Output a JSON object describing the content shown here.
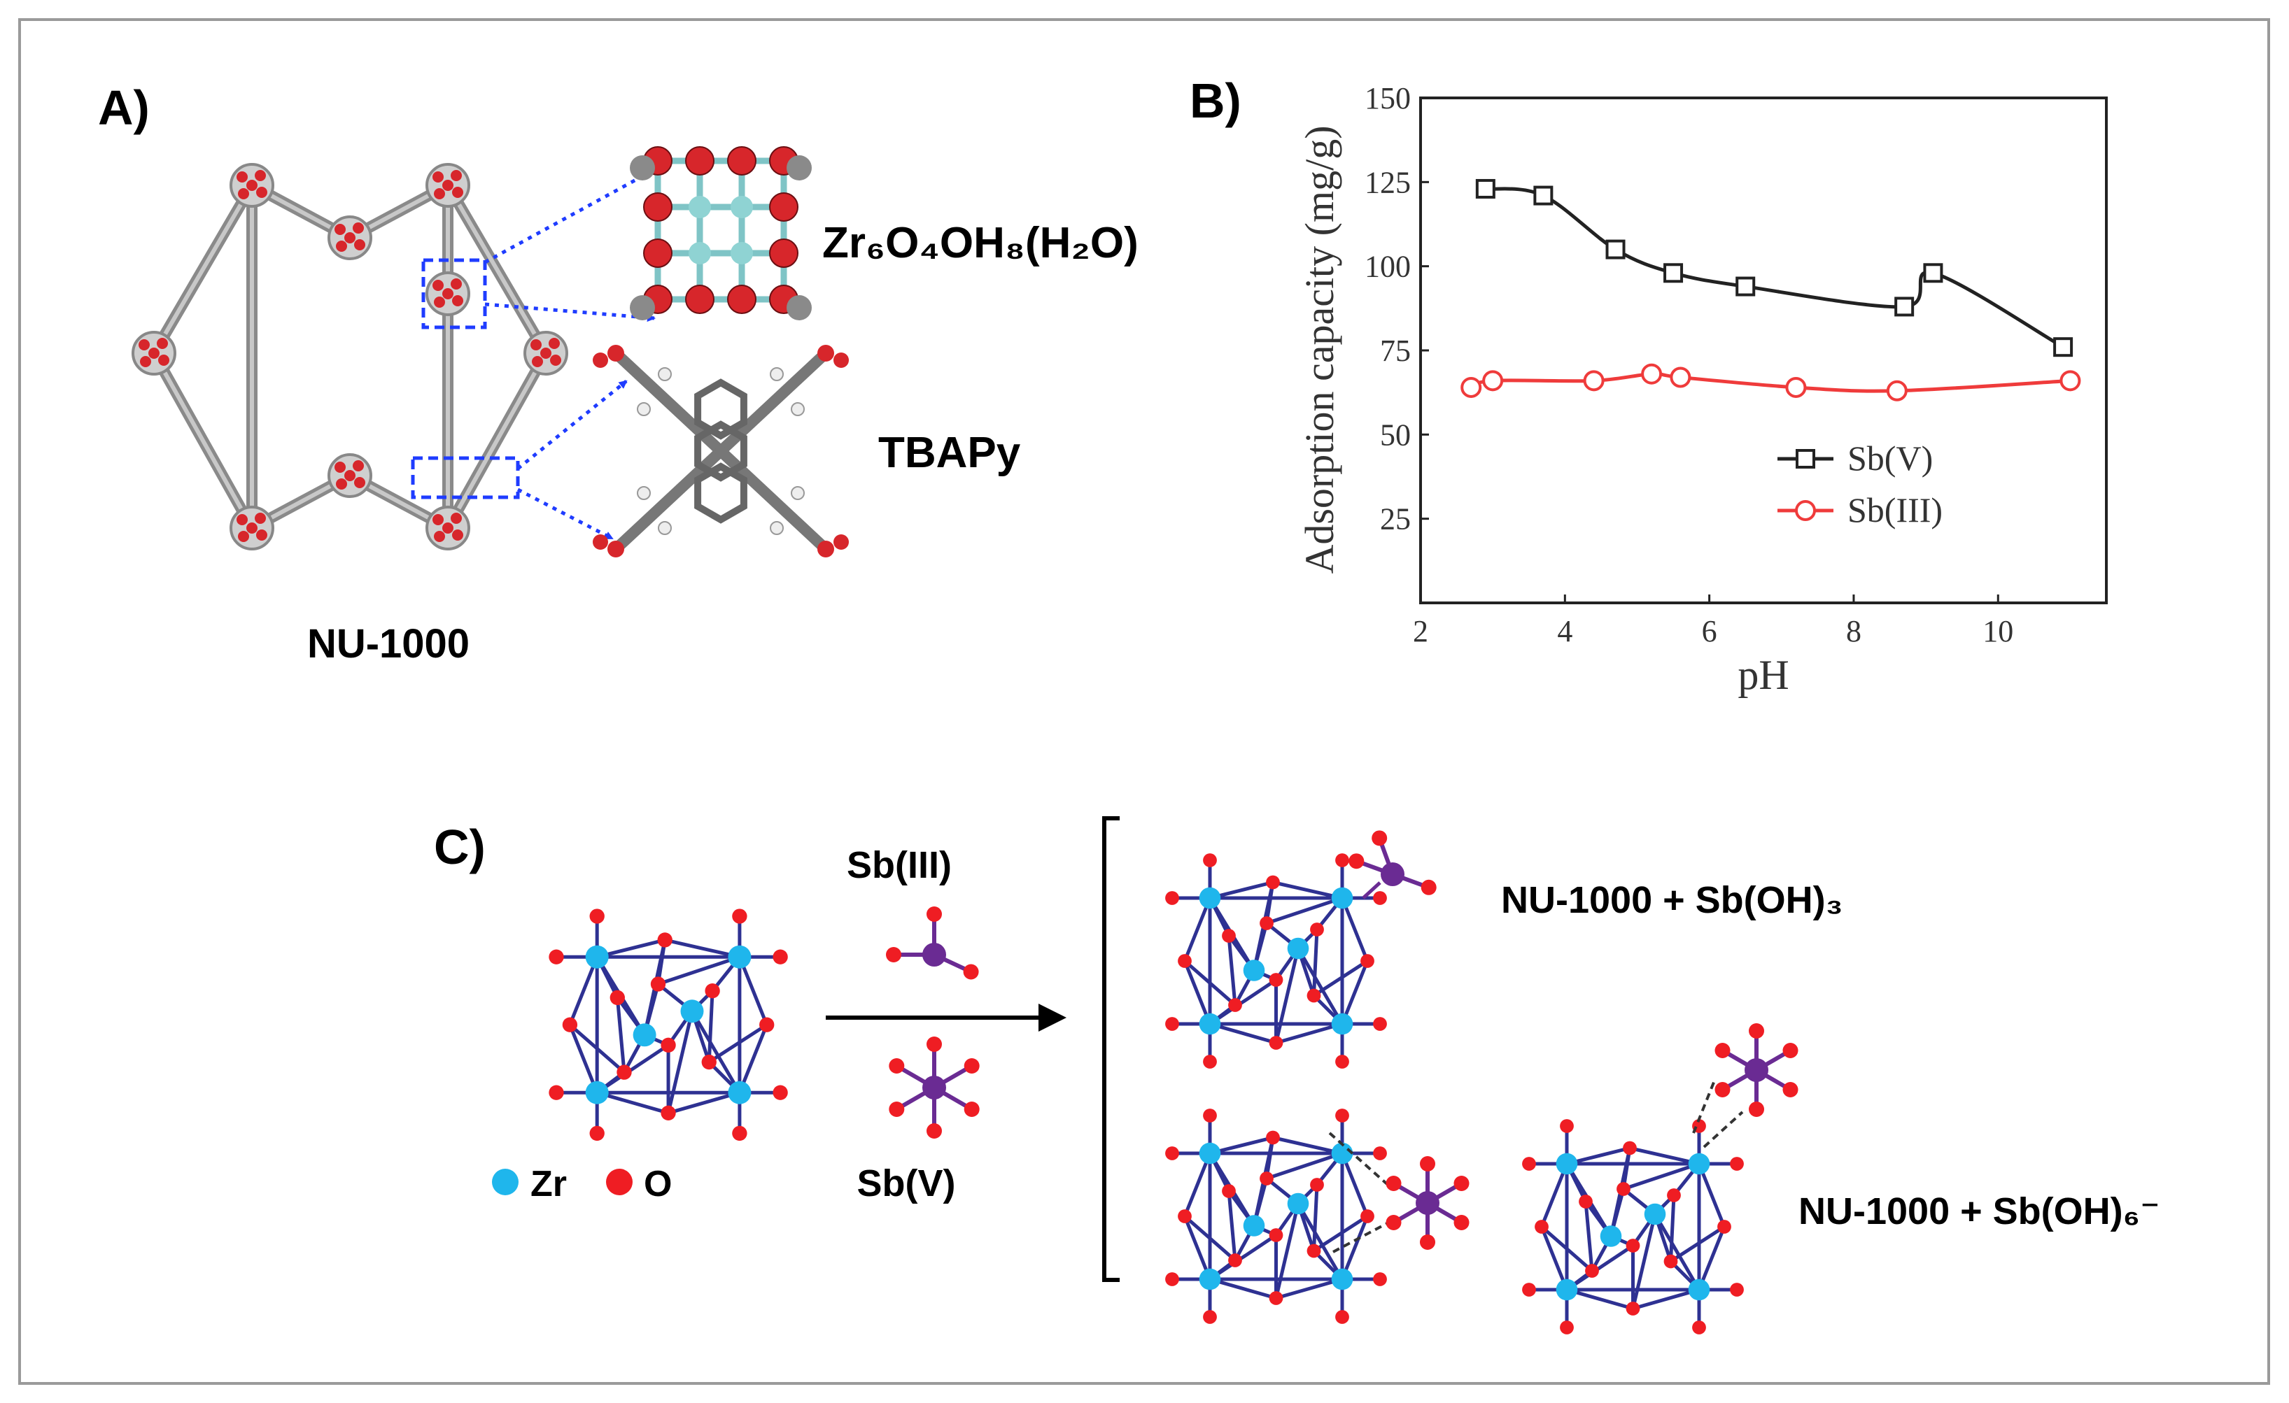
{
  "panels": {
    "a": {
      "label": "A)",
      "framework": "NU-1000",
      "node": "Zr₆O₄OH₈(H₂O)",
      "linker": "TBAPy"
    },
    "b": {
      "label": "B)"
    },
    "c": {
      "label": "C)",
      "reactant_1": "Sb(III)",
      "reactant_2": "Sb(V)",
      "legend_zr": "Zr",
      "legend_o": "O",
      "product_1": "NU-1000 + Sb(OH)₃",
      "product_2": "NU-1000 + Sb(OH)₆⁻"
    }
  },
  "colors": {
    "zr": "#1fb6ec",
    "o": "#ef1d23",
    "sb": "#6a2b93",
    "bond": "#2e3192",
    "arrow_blue": "#1f3cff",
    "sbv_series": "#222222",
    "sbiii_series": "#ef3b3b"
  },
  "chart_data": {
    "type": "line",
    "title": "",
    "xlabel": "pH",
    "ylabel": "Adsorption capacity (mg/g)",
    "xlim": [
      2,
      11.5
    ],
    "ylim": [
      0,
      150
    ],
    "xticks": [
      2,
      4,
      6,
      8,
      10
    ],
    "yticks": [
      25,
      50,
      75,
      100,
      125,
      150
    ],
    "legend_position": "center-right",
    "series": [
      {
        "name": "Sb(V)",
        "marker": "square",
        "x": [
          2.9,
          3.7,
          4.7,
          5.5,
          6.5,
          8.7,
          9.1,
          10.9
        ],
        "y": [
          123,
          121,
          105,
          98,
          94,
          88,
          98,
          76
        ]
      },
      {
        "name": "Sb(III)",
        "marker": "circle",
        "x": [
          2.7,
          3.0,
          4.4,
          5.2,
          5.6,
          7.2,
          8.6,
          11.0
        ],
        "y": [
          64,
          66,
          66,
          68,
          67,
          64,
          63,
          66
        ]
      }
    ]
  }
}
